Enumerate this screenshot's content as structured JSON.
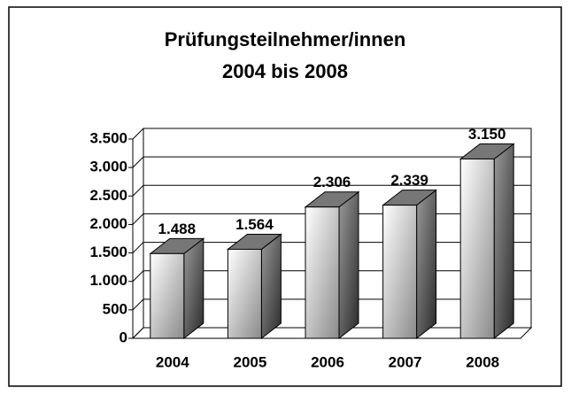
{
  "chart_data": {
    "type": "bar3d",
    "title": [
      "Prüfungsteilnehmer/innen",
      "2004 bis 2008"
    ],
    "categories": [
      "2004",
      "2005",
      "2006",
      "2007",
      "2008"
    ],
    "values": [
      1488,
      1564,
      2306,
      2339,
      3150
    ],
    "value_labels": [
      "1.488",
      "1.564",
      "2.306",
      "2.339",
      "3.150"
    ],
    "ylim": [
      0,
      3500
    ],
    "yticks": [
      0,
      500,
      {
        "value": 1000,
        "label": "1.000"
      },
      {
        "value": 1500,
        "label": "1.500"
      },
      {
        "value": 2000,
        "label": "2.000"
      },
      {
        "value": 2500,
        "label": "2.500"
      },
      {
        "value": 3000,
        "label": "3.000"
      },
      {
        "value": 3500,
        "label": "3.500"
      }
    ],
    "grid": true
  }
}
